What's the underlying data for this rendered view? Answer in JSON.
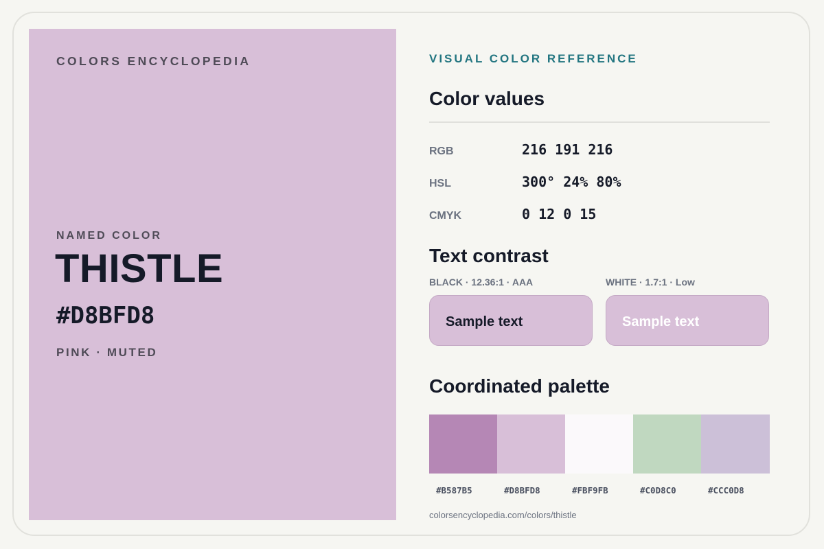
{
  "brand": "COLORS ENCYCLOPEDIA",
  "swatch": {
    "color": "#D8BFD8",
    "named_label": "NAMED COLOR",
    "name": "THISTLE",
    "hex": "#D8BFD8",
    "tags": "PINK · MUTED"
  },
  "reference": {
    "label": "VISUAL COLOR REFERENCE",
    "values_heading": "Color values",
    "values": [
      {
        "label": "RGB",
        "value": "216 191 216"
      },
      {
        "label": "HSL",
        "value": "300° 24% 80%"
      },
      {
        "label": "CMYK",
        "value": "0 12 0 15"
      }
    ],
    "contrast_heading": "Text contrast",
    "contrast": [
      {
        "caption": "BLACK · 12.36:1 · AAA",
        "sample": "Sample text",
        "text_color": "#151a28"
      },
      {
        "caption": "WHITE · 1.7:1 · Low",
        "sample": "Sample text",
        "text_color": "#ffffff"
      }
    ],
    "palette_heading": "Coordinated palette",
    "palette": [
      {
        "hex": "#B587B5",
        "color": "#B587B5"
      },
      {
        "hex": "#D8BFD8",
        "color": "#D8BFD8"
      },
      {
        "hex": "#FBF9FB",
        "color": "#FBF9FB"
      },
      {
        "hex": "#C0D8C0",
        "color": "#C0D8C0"
      },
      {
        "hex": "#CCC0D8",
        "color": "#CCC0D8"
      }
    ],
    "source": "colorsencyclopedia.com/colors/thistle"
  }
}
